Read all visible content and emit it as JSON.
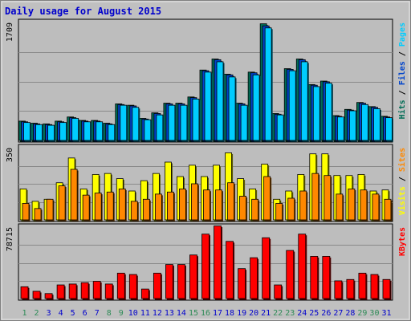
{
  "colors": {
    "frame": "#c0c0c0",
    "panel": "#bdbdbd",
    "title": "#0000cc",
    "pages": "#00ccff",
    "files": "#0044cc",
    "hits": "#006d56",
    "visits": "#ffff00",
    "sites": "#ff8800",
    "kbytes": "#ff0000",
    "weekend": "#2e8b57",
    "weekday": "#0000cc",
    "axis_text": "#000000"
  },
  "chart_data": {
    "type": "bar",
    "title": "Daily usage for August 2015",
    "days": [
      "1",
      "2",
      "3",
      "4",
      "5",
      "6",
      "7",
      "8",
      "9",
      "10",
      "11",
      "12",
      "13",
      "14",
      "15",
      "16",
      "17",
      "18",
      "19",
      "20",
      "21",
      "22",
      "23",
      "24",
      "25",
      "26",
      "27",
      "28",
      "29",
      "30",
      "31"
    ],
    "weekend_days": [
      "1",
      "2",
      "8",
      "9",
      "15",
      "16",
      "22",
      "23",
      "29",
      "30"
    ],
    "panels": [
      {
        "max_label": "1709",
        "ylim": [
          0,
          1709
        ],
        "legend": [
          "Pages",
          "Files",
          "Hits"
        ],
        "series": [
          {
            "name": "Hits",
            "values": [
              280,
              250,
              240,
              280,
              340,
              290,
              290,
              250,
              530,
              510,
              320,
              400,
              540,
              540,
              630,
              1020,
              1180,
              960,
              540,
              990,
              1690,
              390,
              1040,
              1180,
              810,
              860,
              360,
              450,
              550,
              490,
              350
            ]
          },
          {
            "name": "Files",
            "values": [
              270,
              240,
              230,
              270,
              330,
              280,
              280,
              240,
              520,
              500,
              310,
              390,
              530,
              530,
              620,
              1010,
              1170,
              950,
              530,
              980,
              1660,
              380,
              1030,
              1170,
              800,
              850,
              350,
              440,
              540,
              480,
              340
            ]
          },
          {
            "name": "Pages",
            "values": [
              260,
              230,
              220,
              260,
              320,
              270,
              270,
              230,
              510,
              480,
              300,
              370,
              510,
              510,
              600,
              990,
              1140,
              920,
              510,
              950,
              1630,
              370,
              1010,
              1140,
              780,
              830,
              340,
              430,
              520,
              460,
              330
            ]
          }
        ]
      },
      {
        "max_label": "350",
        "ylim": [
          0,
          350
        ],
        "legend": [
          "Sites",
          "Visits"
        ],
        "series": [
          {
            "name": "Visits",
            "values": [
              150,
              90,
              100,
              180,
              300,
              150,
              220,
              225,
              200,
              140,
              190,
              225,
              280,
              210,
              265,
              210,
              265,
              325,
              200,
              150,
              270,
              100,
              140,
              220,
              320,
              320,
              215,
              215,
              220,
              140,
              145
            ]
          },
          {
            "name": "Sites",
            "values": [
              80,
              55,
              100,
              165,
              245,
              120,
              130,
              135,
              150,
              90,
              100,
              125,
              135,
              150,
              175,
              145,
              145,
              180,
              115,
              100,
              210,
              80,
              105,
              140,
              225,
              215,
              125,
              150,
              145,
              125,
              100
            ]
          }
        ]
      },
      {
        "max_label": "78715",
        "ylim": [
          0,
          78715
        ],
        "legend": [
          "KBytes"
        ],
        "series": [
          {
            "name": "KBytes",
            "values": [
              13000,
              8000,
              5500,
              15000,
              16000,
              17500,
              19000,
              16000,
              28000,
              26500,
              10500,
              28000,
              37500,
              37500,
              48000,
              71000,
              80000,
              63000,
              33000,
              45000,
              67000,
              15000,
              53000,
              71000,
              46500,
              46500,
              19500,
              21000,
              28000,
              26500,
              21000
            ]
          }
        ]
      }
    ]
  }
}
